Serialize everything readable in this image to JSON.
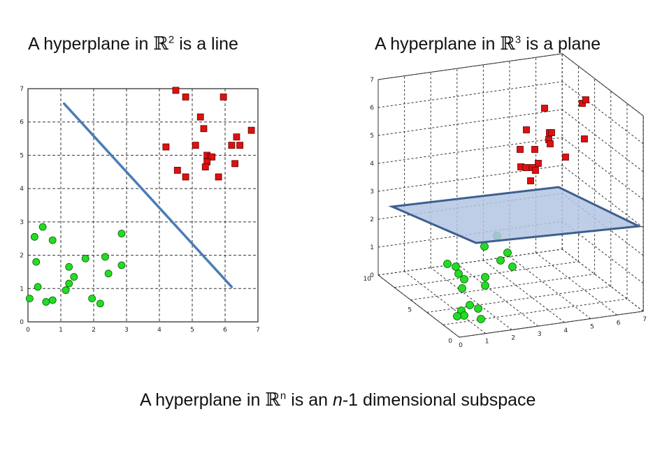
{
  "titles": {
    "left": {
      "prefix": "A hyperplane in ",
      "symbol": "ℝ",
      "exp": "2",
      "suffix": " is a line"
    },
    "right": {
      "prefix": "A hyperplane in ",
      "symbol": "ℝ",
      "exp": "3",
      "suffix": " is a plane"
    },
    "bottom": {
      "prefix": "A hyperplane in ",
      "symbol": "ℝ",
      "exp": "n",
      "mid": " is an ",
      "italic": "n",
      "suffix": "-1 dimensional subspace"
    }
  },
  "chart_data": [
    {
      "type": "scatter",
      "xlim": [
        0,
        7
      ],
      "ylim": [
        0,
        7
      ],
      "xticks": [
        "0",
        "1",
        "2",
        "3",
        "4",
        "5",
        "6",
        "7"
      ],
      "yticks": [
        "0",
        "1",
        "2",
        "3",
        "4",
        "5",
        "6",
        "7"
      ],
      "grid": true,
      "colors": {
        "red": "#dd1111",
        "green": "#22dd22",
        "line": "#4a7cb5"
      },
      "red_points": [
        [
          4.5,
          6.95
        ],
        [
          4.8,
          6.75
        ],
        [
          5.95,
          6.75
        ],
        [
          5.25,
          6.15
        ],
        [
          5.35,
          5.8
        ],
        [
          6.8,
          5.75
        ],
        [
          6.35,
          5.55
        ],
        [
          4.2,
          5.25
        ],
        [
          5.1,
          5.3
        ],
        [
          6.2,
          5.3
        ],
        [
          6.45,
          5.3
        ],
        [
          5.45,
          5.0
        ],
        [
          5.55,
          4.95
        ],
        [
          5.6,
          4.95
        ],
        [
          5.45,
          4.8
        ],
        [
          6.3,
          4.75
        ],
        [
          5.4,
          4.65
        ],
        [
          4.55,
          4.55
        ],
        [
          4.8,
          4.35
        ],
        [
          5.8,
          4.35
        ]
      ],
      "green_points": [
        [
          0.45,
          2.85
        ],
        [
          0.2,
          2.55
        ],
        [
          0.75,
          2.45
        ],
        [
          2.85,
          2.65
        ],
        [
          0.25,
          1.8
        ],
        [
          1.75,
          1.9
        ],
        [
          2.35,
          1.95
        ],
        [
          2.85,
          1.7
        ],
        [
          1.25,
          1.65
        ],
        [
          2.45,
          1.45
        ],
        [
          1.4,
          1.35
        ],
        [
          1.25,
          1.15
        ],
        [
          0.3,
          1.05
        ],
        [
          1.15,
          0.95
        ],
        [
          0.05,
          0.7
        ],
        [
          1.95,
          0.7
        ],
        [
          0.55,
          0.6
        ],
        [
          0.75,
          0.65
        ],
        [
          2.2,
          0.55
        ]
      ],
      "separator": [
        [
          1.1,
          6.55
        ],
        [
          6.2,
          1.05
        ]
      ]
    },
    {
      "type": "scatter",
      "projection": "3d",
      "xlim": [
        0,
        7
      ],
      "ylim": [
        0,
        10
      ],
      "zlim": [
        0,
        7
      ],
      "xticks": [
        "0",
        "1",
        "2",
        "3",
        "4",
        "5",
        "6",
        "7"
      ],
      "yticks": [
        "0",
        "5",
        "10"
      ],
      "zticks": [
        "0",
        "1",
        "2",
        "3",
        "4",
        "5",
        "6",
        "7"
      ],
      "grid": true,
      "colors": {
        "red": "#dd1111",
        "green": "#22dd22",
        "plane": "#b3c6e3",
        "plane_edge": "#3d5f8f"
      },
      "red_points_screen_only": true,
      "plane": {
        "description_hidden": true
      }
    }
  ]
}
